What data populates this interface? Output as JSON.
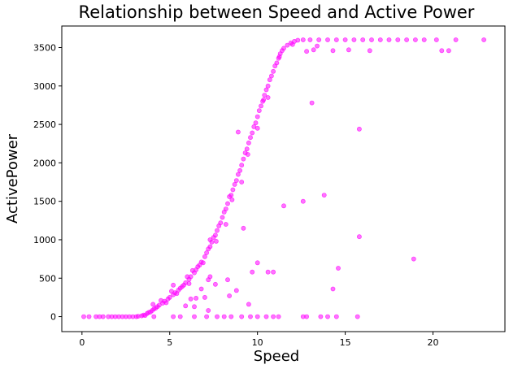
{
  "chart_data": {
    "type": "scatter",
    "title": "Relationship between Speed and Active Power",
    "xlabel": "Speed",
    "ylabel": "ActivePower",
    "xlim": [
      -1.15,
      24.1
    ],
    "ylim": [
      -195,
      3780
    ],
    "xticks": [
      0,
      5,
      10,
      15,
      20
    ],
    "yticks": [
      0,
      500,
      1000,
      1500,
      2000,
      2500,
      3000,
      3500
    ],
    "grid": false,
    "legend": "none",
    "point_color": "#ff00ff",
    "point_opacity": 0.55,
    "series": [
      {
        "points": [
          [
            0.1,
            0
          ],
          [
            0.4,
            0
          ],
          [
            0.8,
            0
          ],
          [
            1.0,
            0
          ],
          [
            1.2,
            0
          ],
          [
            1.5,
            0
          ],
          [
            1.7,
            0
          ],
          [
            1.9,
            0
          ],
          [
            2.1,
            0
          ],
          [
            2.3,
            0
          ],
          [
            2.5,
            0
          ],
          [
            2.7,
            0
          ],
          [
            2.9,
            0
          ],
          [
            3.1,
            0
          ],
          [
            3.2,
            5
          ],
          [
            3.4,
            10
          ],
          [
            3.5,
            20
          ],
          [
            3.7,
            40
          ],
          [
            3.8,
            55
          ],
          [
            4.0,
            80
          ],
          [
            4.1,
            100
          ],
          [
            4.3,
            130
          ],
          [
            4.4,
            150
          ],
          [
            4.6,
            175
          ],
          [
            4.7,
            200
          ],
          [
            4.9,
            230
          ],
          [
            5.0,
            250
          ],
          [
            5.2,
            285
          ],
          [
            5.3,
            310
          ],
          [
            5.5,
            345
          ],
          [
            5.6,
            370
          ],
          [
            5.8,
            410
          ],
          [
            5.9,
            440
          ],
          [
            6.1,
            485
          ],
          [
            6.2,
            520
          ],
          [
            6.4,
            570
          ],
          [
            6.5,
            610
          ],
          [
            6.7,
            670
          ],
          [
            6.8,
            710
          ],
          [
            7.0,
            780
          ],
          [
            7.1,
            830
          ],
          [
            7.3,
            910
          ],
          [
            7.4,
            970
          ],
          [
            7.6,
            1060
          ],
          [
            7.7,
            1120
          ],
          [
            7.9,
            1220
          ],
          [
            8.0,
            1290
          ],
          [
            8.2,
            1400
          ],
          [
            8.3,
            1470
          ],
          [
            8.5,
            1580
          ],
          [
            8.6,
            1650
          ],
          [
            8.8,
            1770
          ],
          [
            8.9,
            1850
          ],
          [
            9.1,
            1970
          ],
          [
            9.2,
            2050
          ],
          [
            9.4,
            2180
          ],
          [
            9.5,
            2260
          ],
          [
            9.7,
            2390
          ],
          [
            9.8,
            2470
          ],
          [
            10.0,
            2600
          ],
          [
            10.1,
            2680
          ],
          [
            10.3,
            2800
          ],
          [
            10.4,
            2880
          ],
          [
            10.6,
            3000
          ],
          [
            10.7,
            3080
          ],
          [
            10.9,
            3190
          ],
          [
            11.0,
            3260
          ],
          [
            11.2,
            3360
          ],
          [
            11.3,
            3420
          ],
          [
            11.5,
            3490
          ],
          [
            11.7,
            3530
          ],
          [
            11.9,
            3560
          ],
          [
            12.1,
            3580
          ],
          [
            12.3,
            3595
          ],
          [
            12.6,
            3600
          ],
          [
            13.0,
            3600
          ],
          [
            13.5,
            3600
          ],
          [
            14.0,
            3600
          ],
          [
            14.5,
            3600
          ],
          [
            15.0,
            3600
          ],
          [
            15.5,
            3600
          ],
          [
            16.0,
            3600
          ],
          [
            16.5,
            3600
          ],
          [
            17.0,
            3600
          ],
          [
            17.5,
            3600
          ],
          [
            18.0,
            3600
          ],
          [
            18.5,
            3600
          ],
          [
            19.0,
            3600
          ],
          [
            19.5,
            3600
          ],
          [
            20.2,
            3600
          ],
          [
            21.3,
            3600
          ],
          [
            22.9,
            3600
          ],
          [
            12.8,
            3450
          ],
          [
            13.2,
            3470
          ],
          [
            14.3,
            3460
          ],
          [
            15.2,
            3470
          ],
          [
            16.4,
            3460
          ],
          [
            20.5,
            3460
          ],
          [
            20.9,
            3460
          ],
          [
            13.4,
            3520
          ],
          [
            9.6,
            2330
          ],
          [
            9.9,
            2520
          ],
          [
            8.4,
            1560
          ],
          [
            7.5,
            1030
          ],
          [
            6.6,
            650
          ],
          [
            10.5,
            2950
          ],
          [
            11.1,
            3300
          ],
          [
            8.7,
            1720
          ],
          [
            9.3,
            2130
          ],
          [
            7.8,
            1180
          ],
          [
            4.5,
            210
          ],
          [
            5.1,
            330
          ],
          [
            6.0,
            520
          ],
          [
            6.3,
            600
          ],
          [
            7.2,
            880
          ],
          [
            8.1,
            1360
          ],
          [
            9.0,
            1900
          ],
          [
            10.2,
            2740
          ],
          [
            10.8,
            3130
          ],
          [
            11.4,
            3460
          ],
          [
            4.8,
            180
          ],
          [
            5.4,
            300
          ],
          [
            5.7,
            390
          ],
          [
            6.9,
            700
          ],
          [
            7.65,
            980
          ],
          [
            8.55,
            1520
          ],
          [
            9.45,
            2110
          ],
          [
            10.35,
            2820
          ],
          [
            11.25,
            3380
          ],
          [
            12.0,
            3540
          ],
          [
            3.9,
            60
          ],
          [
            4.2,
            110
          ],
          [
            4.05,
            160
          ],
          [
            3.6,
            15
          ],
          [
            5.2,
            410
          ],
          [
            6.1,
            430
          ],
          [
            7.3,
            1000
          ],
          [
            8.2,
            1200
          ],
          [
            9.1,
            1750
          ],
          [
            10.0,
            2450
          ],
          [
            7.3,
            520
          ],
          [
            7.2,
            480
          ],
          [
            7.6,
            420
          ],
          [
            8.4,
            270
          ],
          [
            6.5,
            240
          ],
          [
            6.2,
            230
          ],
          [
            6.4,
            130
          ],
          [
            7.2,
            80
          ],
          [
            9.5,
            160
          ],
          [
            10.0,
            700
          ],
          [
            10.6,
            580
          ],
          [
            10.9,
            580
          ],
          [
            12.6,
            1500
          ],
          [
            11.5,
            1440
          ],
          [
            13.8,
            1580
          ],
          [
            13.1,
            2780
          ],
          [
            15.8,
            2440
          ],
          [
            15.8,
            1040
          ],
          [
            14.6,
            630
          ],
          [
            14.3,
            360
          ],
          [
            18.9,
            750
          ],
          [
            4.1,
            0
          ],
          [
            5.2,
            0
          ],
          [
            5.6,
            0
          ],
          [
            6.4,
            0
          ],
          [
            7.1,
            0
          ],
          [
            7.7,
            0
          ],
          [
            8.1,
            0
          ],
          [
            8.5,
            0
          ],
          [
            9.1,
            0
          ],
          [
            9.6,
            0
          ],
          [
            10.0,
            0
          ],
          [
            10.5,
            0
          ],
          [
            10.9,
            0
          ],
          [
            11.2,
            0
          ],
          [
            12.6,
            0
          ],
          [
            12.8,
            0
          ],
          [
            13.6,
            0
          ],
          [
            14.0,
            0
          ],
          [
            14.5,
            0
          ],
          [
            15.7,
            0
          ],
          [
            9.2,
            1150
          ],
          [
            8.9,
            2400
          ],
          [
            7.0,
            250
          ],
          [
            5.9,
            140
          ],
          [
            6.8,
            360
          ],
          [
            8.3,
            480
          ],
          [
            8.8,
            340
          ],
          [
            9.7,
            580
          ],
          [
            10.6,
            2850
          ]
        ]
      }
    ]
  }
}
